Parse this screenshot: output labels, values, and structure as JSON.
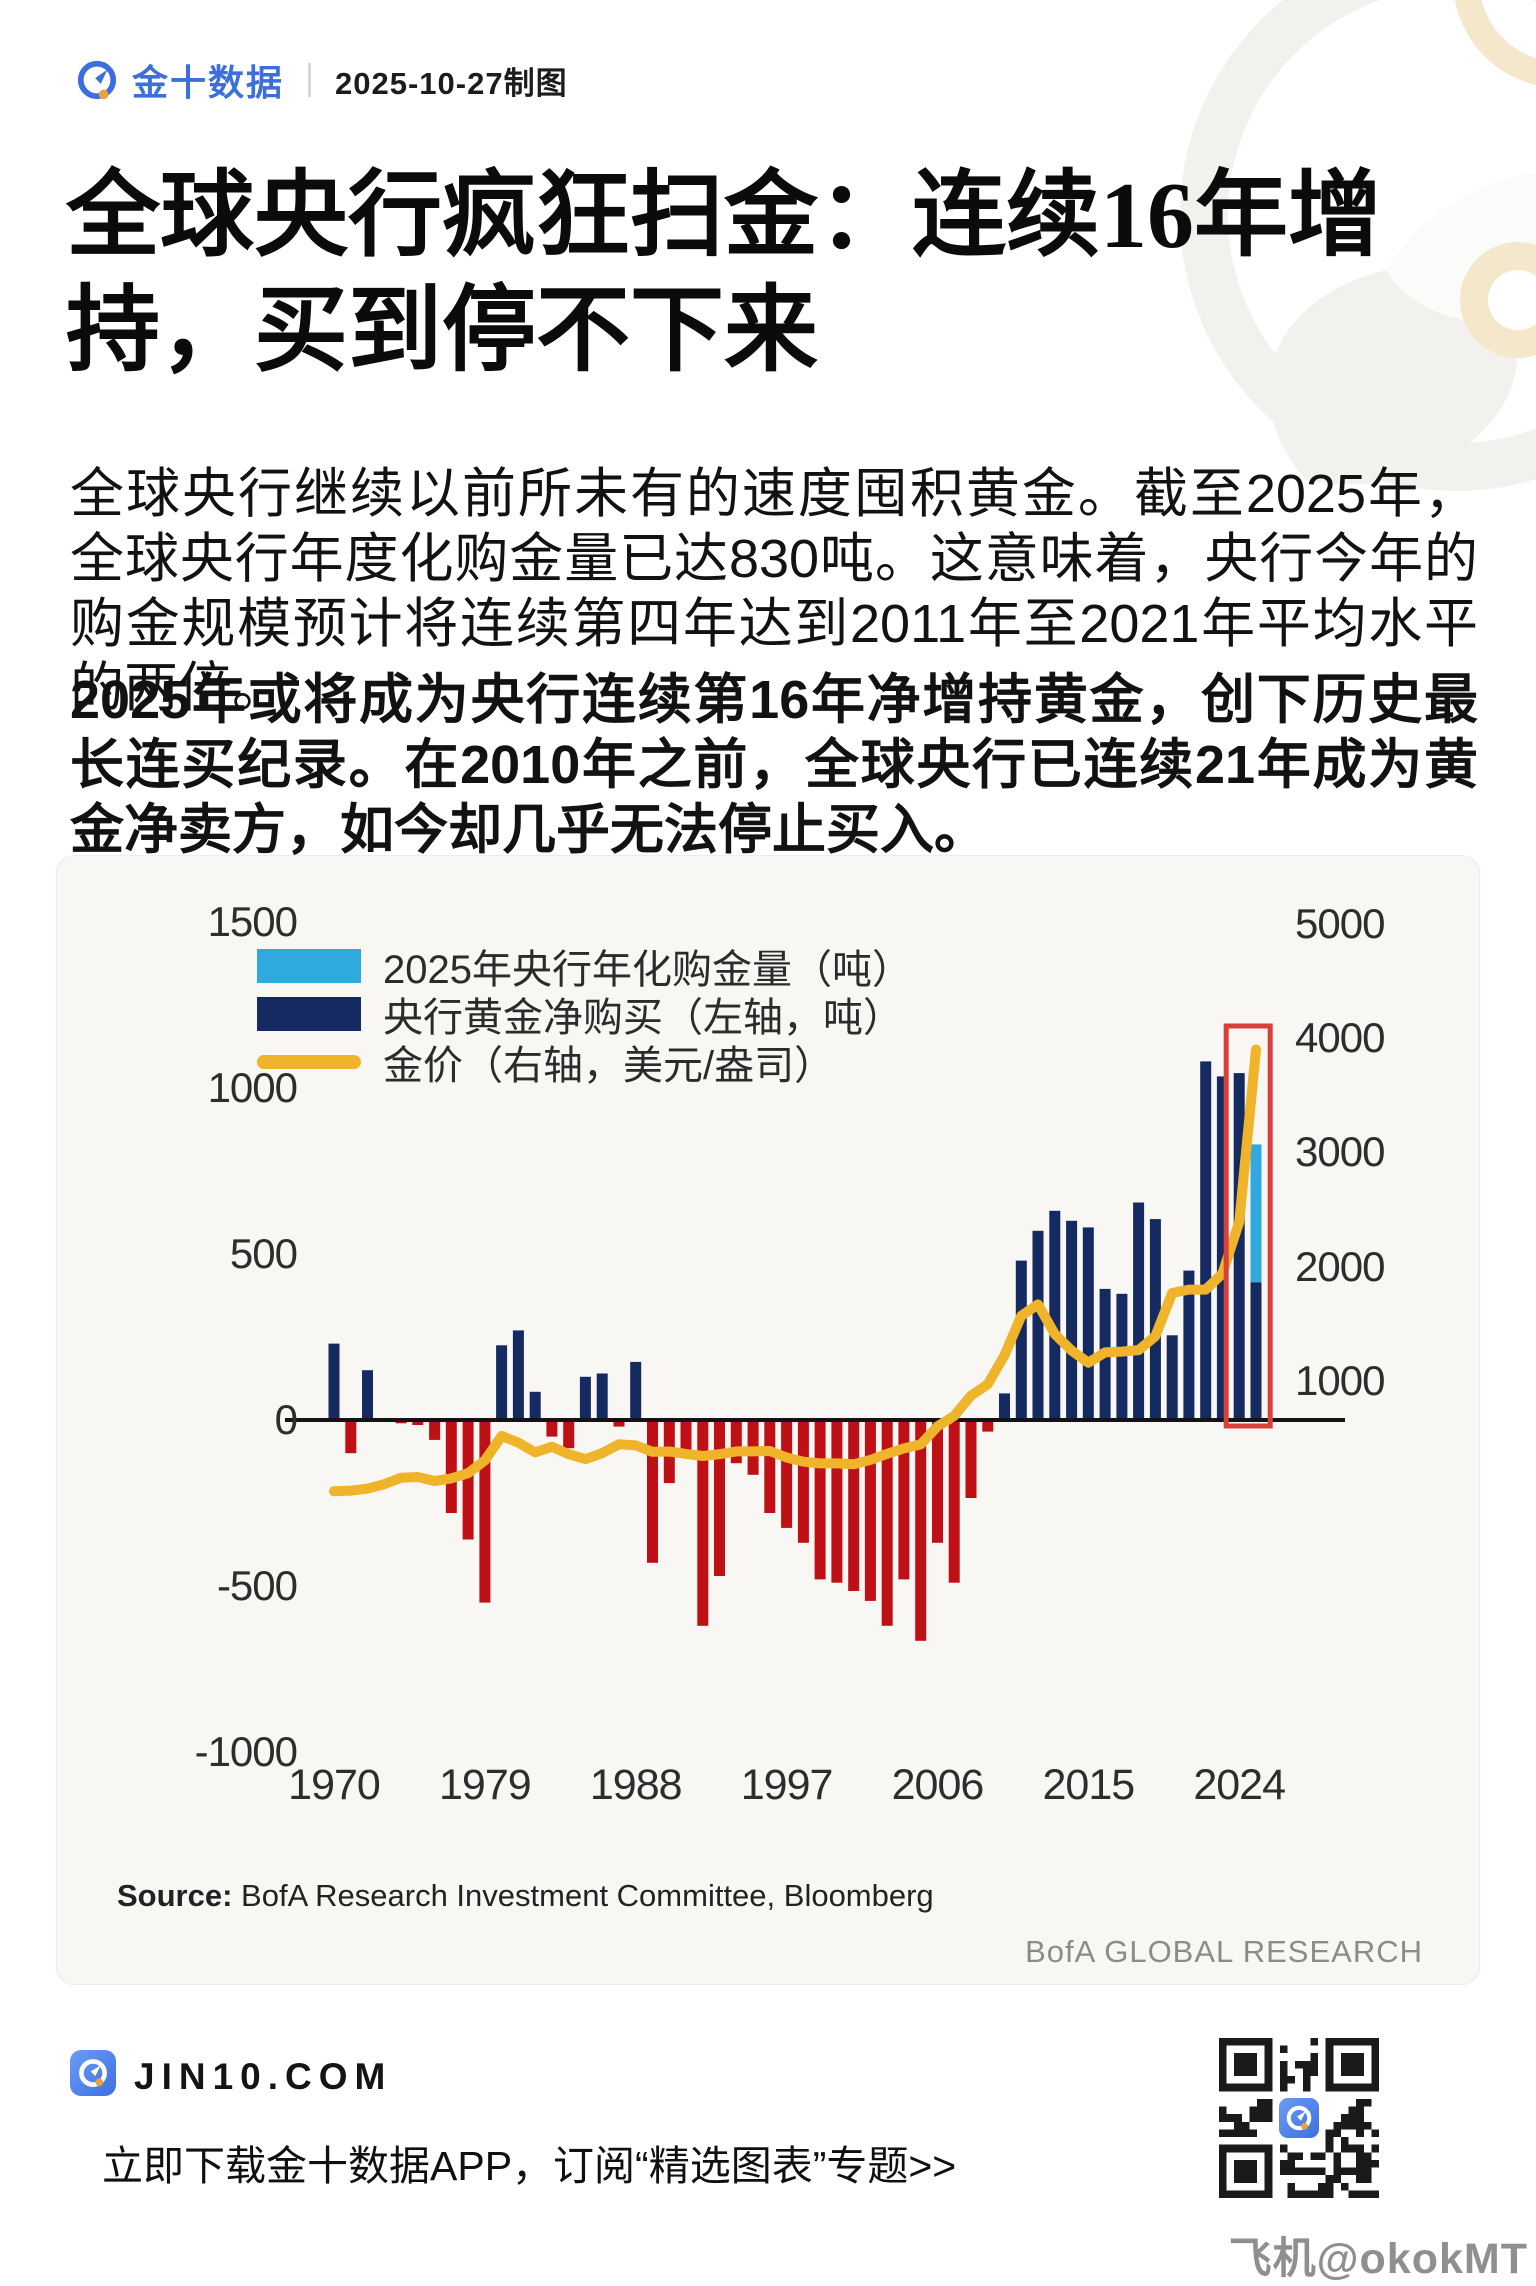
{
  "header": {
    "brand": "金十数据",
    "date_note": "2025-10-27制图"
  },
  "title_line1": "全球央行疯狂扫金：连续16年增",
  "title_line2": "持，买到停不下来",
  "paragraphs": {
    "p1": "全球央行继续以前所未有的速度囤积黄金。截至2025年，全球央行年度化购金量已达830吨。这意味着，央行今年的购金规模预计将连续第四年达到2011年至2021年平均水平的两倍。",
    "p2_bold": "2025年或将成为央行连续第16年净增持黄金，创下历史最长连买纪录。在2010年之前，全球央行已连续21年成为黄金净卖方，如今却几乎无法停止买入。"
  },
  "chart_data": {
    "type": "bar",
    "subtype": "dual-axis bar + line",
    "legend": [
      {
        "label": "2025年央行年化购金量（吨）",
        "color": "#2FA9DE",
        "kind": "bar"
      },
      {
        "label": "央行黄金净购买（左轴，吨）",
        "color": "#152A60",
        "kind": "bar"
      },
      {
        "label": "金价（右轴，美元/盎司）",
        "color": "#F0B42A",
        "kind": "line"
      }
    ],
    "left_axis": {
      "units": "吨",
      "ticks": [
        1500,
        1000,
        500,
        0,
        -500,
        -1000
      ],
      "range": [
        -1000,
        1500
      ]
    },
    "right_axis": {
      "units": "美元/盎司",
      "ticks": [
        5000,
        4000,
        3000,
        2000,
        1000
      ],
      "range": [
        0,
        5000
      ]
    },
    "x_axis": {
      "ticks": [
        1970,
        1979,
        1988,
        1997,
        2006,
        2015,
        2024
      ],
      "range": [
        1970,
        2025
      ]
    },
    "bars_tonnes": [
      [
        1970,
        230
      ],
      [
        1971,
        -100
      ],
      [
        1972,
        150
      ],
      [
        1973,
        5
      ],
      [
        1974,
        -10
      ],
      [
        1975,
        -15
      ],
      [
        1976,
        -60
      ],
      [
        1977,
        -280
      ],
      [
        1978,
        -360
      ],
      [
        1979,
        -550
      ],
      [
        1980,
        225
      ],
      [
        1981,
        270
      ],
      [
        1982,
        85
      ],
      [
        1983,
        -50
      ],
      [
        1984,
        -85
      ],
      [
        1985,
        130
      ],
      [
        1986,
        140
      ],
      [
        1987,
        -20
      ],
      [
        1988,
        175
      ],
      [
        1989,
        -430
      ],
      [
        1990,
        -190
      ],
      [
        1991,
        -100
      ],
      [
        1992,
        -620
      ],
      [
        1993,
        -470
      ],
      [
        1994,
        -130
      ],
      [
        1995,
        -165
      ],
      [
        1996,
        -280
      ],
      [
        1997,
        -325
      ],
      [
        1998,
        -370
      ],
      [
        1999,
        -480
      ],
      [
        2000,
        -490
      ],
      [
        2001,
        -515
      ],
      [
        2002,
        -545
      ],
      [
        2003,
        -620
      ],
      [
        2004,
        -480
      ],
      [
        2005,
        -665
      ],
      [
        2006,
        -370
      ],
      [
        2007,
        -490
      ],
      [
        2008,
        -235
      ],
      [
        2009,
        -35
      ],
      [
        2010,
        80
      ],
      [
        2011,
        480
      ],
      [
        2012,
        570
      ],
      [
        2013,
        630
      ],
      [
        2014,
        600
      ],
      [
        2015,
        580
      ],
      [
        2016,
        395
      ],
      [
        2017,
        380
      ],
      [
        2018,
        655
      ],
      [
        2019,
        605
      ],
      [
        2020,
        255
      ],
      [
        2021,
        450
      ],
      [
        2022,
        1080
      ],
      [
        2023,
        1035
      ],
      [
        2024,
        1045
      ]
    ],
    "bar_2025": {
      "year": 2025,
      "annualized_total": 830,
      "ytd_navy": 415
    },
    "gold_price_usd": [
      [
        1970,
        36
      ],
      [
        1971,
        41
      ],
      [
        1972,
        58
      ],
      [
        1973,
        97
      ],
      [
        1974,
        154
      ],
      [
        1975,
        160
      ],
      [
        1976,
        125
      ],
      [
        1977,
        148
      ],
      [
        1978,
        193
      ],
      [
        1979,
        305
      ],
      [
        1980,
        520
      ],
      [
        1981,
        460
      ],
      [
        1982,
        375
      ],
      [
        1983,
        424
      ],
      [
        1984,
        360
      ],
      [
        1985,
        317
      ],
      [
        1986,
        368
      ],
      [
        1987,
        447
      ],
      [
        1988,
        437
      ],
      [
        1989,
        381
      ],
      [
        1990,
        383
      ],
      [
        1991,
        362
      ],
      [
        1992,
        344
      ],
      [
        1993,
        360
      ],
      [
        1994,
        384
      ],
      [
        1995,
        384
      ],
      [
        1996,
        388
      ],
      [
        1997,
        331
      ],
      [
        1998,
        294
      ],
      [
        1999,
        279
      ],
      [
        2000,
        279
      ],
      [
        2001,
        271
      ],
      [
        2002,
        310
      ],
      [
        2003,
        363
      ],
      [
        2004,
        410
      ],
      [
        2005,
        445
      ],
      [
        2006,
        603
      ],
      [
        2007,
        695
      ],
      [
        2008,
        872
      ],
      [
        2009,
        972
      ],
      [
        2010,
        1225
      ],
      [
        2011,
        1570
      ],
      [
        2012,
        1670
      ],
      [
        2013,
        1410
      ],
      [
        2014,
        1266
      ],
      [
        2015,
        1160
      ],
      [
        2016,
        1250
      ],
      [
        2017,
        1257
      ],
      [
        2018,
        1270
      ],
      [
        2019,
        1393
      ],
      [
        2020,
        1770
      ],
      [
        2021,
        1800
      ],
      [
        2022,
        1800
      ],
      [
        2023,
        1940
      ],
      [
        2024,
        2390
      ],
      [
        2025,
        3900
      ]
    ],
    "highlight_box": {
      "years": [
        2024,
        2025
      ],
      "color": "#D8403C"
    },
    "colors": {
      "positive_bar": "#152A60",
      "negative_bar": "#BF1016",
      "annualized_bar": "#2FA9DE",
      "gold_line": "#F0B42A",
      "zero_line": "#141414"
    },
    "source_prefix": "Source:",
    "source_text": " BofA Research Investment Committee, Bloomberg",
    "branding": "BofA GLOBAL RESEARCH"
  },
  "footer": {
    "site": "JIN10.COM",
    "tagline": "立即下载金十数据APP，订阅“精选图表”专题>>"
  },
  "watermark": "飞机@okokMT"
}
